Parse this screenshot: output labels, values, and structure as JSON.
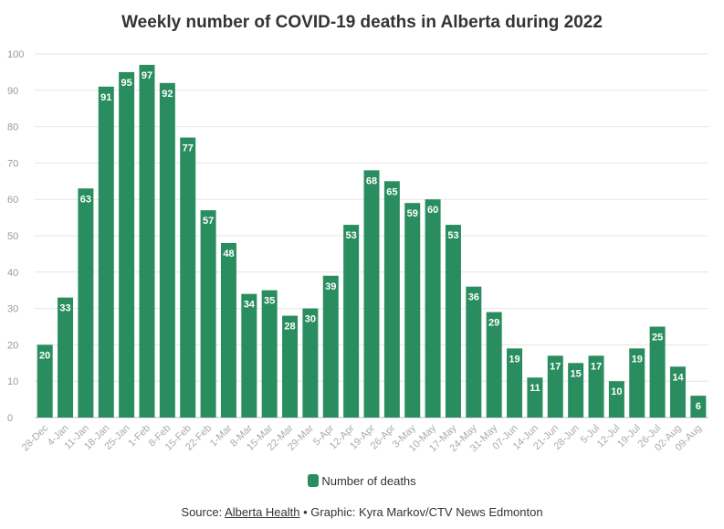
{
  "chart_data": {
    "type": "bar",
    "title": "Weekly number of COVID-19 deaths in Alberta during 2022",
    "xlabel": "",
    "ylabel": "",
    "ylim": [
      0,
      100
    ],
    "yticks": [
      0,
      10,
      20,
      30,
      40,
      50,
      60,
      70,
      80,
      90,
      100
    ],
    "categories": [
      "28-Dec",
      "4-Jan",
      "11-Jan",
      "18-Jan",
      "25-Jan",
      "1-Feb",
      "8-Feb",
      "15-Feb",
      "22-Feb",
      "1-Mar",
      "8-Mar",
      "15-Mar",
      "22-Mar",
      "29-Mar",
      "5-Apr",
      "12-Apr",
      "19-Apr",
      "26-Apr",
      "3-May",
      "10-May",
      "17-May",
      "24-May",
      "31-May",
      "07-Jun",
      "14-Jun",
      "21-Jun",
      "28-Jun",
      "5-Jul",
      "12-Jul",
      "19-Jul",
      "26-Jul",
      "02-Aug",
      "09-Aug"
    ],
    "series": [
      {
        "name": "Number of deaths",
        "color": "#2a8d5f",
        "values": [
          20,
          33,
          63,
          91,
          95,
          97,
          92,
          77,
          57,
          48,
          34,
          35,
          28,
          30,
          39,
          53,
          68,
          65,
          59,
          60,
          53,
          36,
          29,
          19,
          11,
          17,
          15,
          17,
          10,
          19,
          25,
          14,
          6
        ]
      }
    ],
    "legend": "bottom-center",
    "grid": true
  },
  "footer": {
    "prefix": "Source: ",
    "source_link": "Alberta Health",
    "separator": " • ",
    "credit": "Graphic: Kyra Markov/CTV News Edmonton"
  }
}
